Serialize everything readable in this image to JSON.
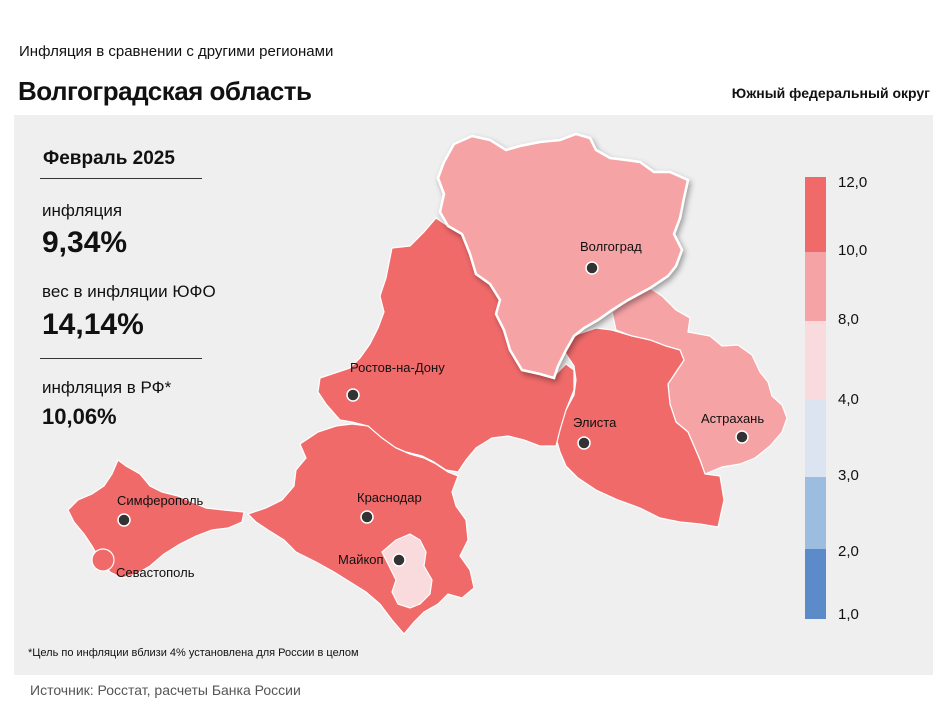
{
  "header": {
    "subtitle": "Инфляция  в сравнении  с другими  регионами",
    "title": "Волгоградская область",
    "district": "Южный федеральный округ"
  },
  "stats": {
    "period": "Февраль 2025",
    "inflation_label": "инфляция",
    "inflation_value": "9,34%",
    "weight_label": "вес в инфляции  ЮФО",
    "weight_value": "14,14%",
    "rf_label": "инфляция  в РФ*",
    "rf_value": "10,06%"
  },
  "cities": {
    "volgograd": "Волгоград",
    "rostov": "Ростов-на-Дону",
    "elista": "Элиста",
    "astrakhan": "Астрахань",
    "simferopol": "Симферополь",
    "krasnodar": "Краснодар",
    "maykop": "Майкоп",
    "sevastopol": "Севастополь"
  },
  "legend": {
    "ticks": [
      "12,0",
      "10,0",
      "8,0",
      "4,0",
      "3,0",
      "2,0",
      "1,0"
    ],
    "colors": [
      "#f06a6a",
      "#f6a3a5",
      "#f9dadd",
      "#dce4f2",
      "#9dbde0",
      "#5b8cc9"
    ]
  },
  "map_colors": {
    "high": "#f06a6a",
    "mid": "#f6a3a5",
    "light": "#f9dadd"
  },
  "footnote": "*Цель по инфляции вблизи 4% установлена для России в целом",
  "source": "Источник: Росстат, расчеты Банка России"
}
